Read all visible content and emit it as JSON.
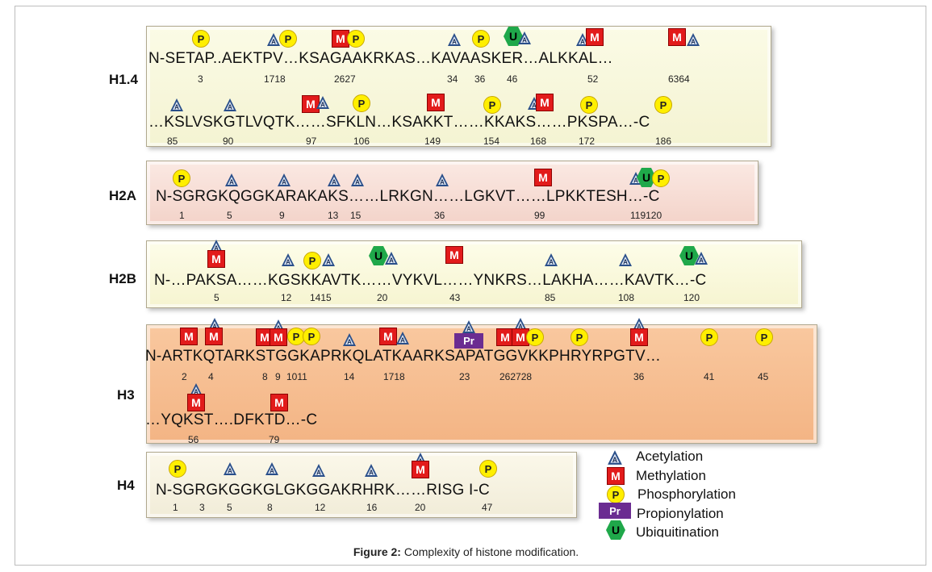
{
  "colors": {
    "acetylation": "#2a4f8a",
    "methylation": "#e21b1b",
    "phosphorylation": "#ffef00",
    "propionylation": "#6b2c91",
    "ubiquitination": "#1fa84a"
  },
  "histones": {
    "h14": {
      "label": "H1.4",
      "line1": {
        "sequence": "N-SETAP..AEKTPV…KSAGAAKRKAS…KAVAASKER…ALKKAL…",
        "positions": [
          "3",
          "1718",
          "2627",
          "34",
          "36",
          "46",
          "52",
          "6364"
        ]
      },
      "line2": {
        "sequence": "…KSLVSKGTLVQTK……SFKLN…KSAKKT……KKAKS……PKSPA…-C",
        "positions": [
          "85",
          "90",
          "97",
          "106",
          "149",
          "154",
          "168",
          "172",
          "186"
        ]
      }
    },
    "h2a": {
      "label": "H2A",
      "sequence": "N-SGRGKQGGKARAKAKS……LRKGN……LGKVT……LPKKTESH…-C",
      "positions": [
        "1",
        "5",
        "9",
        "13",
        "15",
        "36",
        "99",
        "119120"
      ]
    },
    "h2b": {
      "label": "H2B",
      "sequence": "N-…PAKSA……KGSKKAVTK……VYKVL……YNKRS…LAKHA……KAVTK…-C",
      "positions": [
        "5",
        "12",
        "1415",
        "20",
        "43",
        "85",
        "108",
        "120"
      ]
    },
    "h3": {
      "label": "H3",
      "line1": {
        "sequence": "N-ARTKQTARKSTGGKAPRKQLATKAARKSAPATGGVKKPHRYRPGTV…",
        "positions": [
          "2",
          "4",
          "8",
          "9",
          "1011",
          "14",
          "1718",
          "23",
          "262728",
          "36",
          "41",
          "45"
        ]
      },
      "line2": {
        "sequence": "…YQKST….DFKTD…-C",
        "positions": [
          "56",
          "79"
        ]
      }
    },
    "h4": {
      "label": "H4",
      "sequence": "N-SGRGKGGKGLGKGGAKRHRK……RISG I-C",
      "positions": [
        "1",
        "3",
        "5",
        "8",
        "12",
        "16",
        "20",
        "47"
      ]
    }
  },
  "legend": {
    "acetylation": "Acetylation",
    "methylation": "Methylation",
    "phosphorylation": "Phosphorylation",
    "propionylation": "Propionylation",
    "ubiquitination": "Ubiquitination"
  },
  "markers": {
    "acetylation": "A",
    "methylation": "M",
    "phosphorylation": "P",
    "propionylation": "Pr",
    "ubiquitination": "U"
  },
  "caption": {
    "bold": "Figure 2:",
    "text": " Complexity of histone modification."
  }
}
